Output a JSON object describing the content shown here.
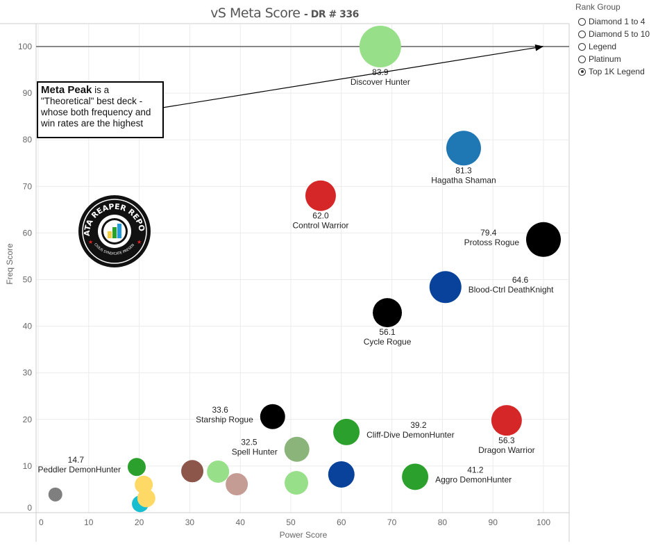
{
  "title": {
    "main": "vS Meta Score",
    "sub": "- DR # 336"
  },
  "legend": {
    "title": "Rank Group",
    "options": [
      {
        "label": "Diamond 1 to 4",
        "selected": false
      },
      {
        "label": "Diamond 5 to 10",
        "selected": false
      },
      {
        "label": "Legend",
        "selected": false
      },
      {
        "label": "Platinum",
        "selected": false
      },
      {
        "label": "Top 1K Legend",
        "selected": true
      }
    ]
  },
  "annotation": {
    "bold": "Meta Peak",
    "text": " is a \"Theoretical\" best deck - whose both frequency and win rates are the highest"
  },
  "logo": {
    "text": "DATA REAPER REPORT",
    "subtext": "VICIOUS SYNDICATE PRESENTS"
  },
  "chart_data": {
    "type": "scatter",
    "title": "vS Meta Score - DR # 336",
    "xlabel": "Power Score",
    "ylabel": "Freq Score",
    "xlim": [
      0,
      100
    ],
    "ylim": [
      0,
      100
    ],
    "xticks": [
      0,
      10,
      20,
      30,
      40,
      50,
      60,
      70,
      80,
      90,
      100
    ],
    "yticks": [
      0,
      10,
      20,
      30,
      40,
      50,
      60,
      70,
      80,
      90,
      100
    ],
    "grid": true,
    "reference_line": {
      "y": 100
    },
    "points": [
      {
        "name": "Discover Hunter",
        "score": "83.9",
        "x": 67.7,
        "y": 100,
        "size": 30,
        "color": "#98df8a",
        "label": "below"
      },
      {
        "name": "Hagatha Shaman",
        "score": "81.3",
        "x": 84.2,
        "y": 78.2,
        "size": 25,
        "color": "#1f77b4",
        "label": "below"
      },
      {
        "name": "Control Warrior",
        "score": "62.0",
        "x": 55.9,
        "y": 68.0,
        "size": 22,
        "color": "#d62728",
        "label": "below"
      },
      {
        "name": "Protoss Rogue",
        "score": "79.4",
        "x": 100,
        "y": 58.6,
        "size": 25,
        "color": "#000000",
        "label": "left"
      },
      {
        "name": "Blood-Ctrl DeathKnight",
        "score": "64.6",
        "x": 80.6,
        "y": 48.4,
        "size": 23,
        "color": "#08429a",
        "label": "right"
      },
      {
        "name": "Cycle Rogue",
        "score": "56.1",
        "x": 69.1,
        "y": 42.9,
        "size": 21,
        "color": "#000000",
        "label": "below"
      },
      {
        "name": "Starship Rogue",
        "score": "33.6",
        "x": 46.4,
        "y": 20.6,
        "size": 18,
        "color": "#000000",
        "label": "left"
      },
      {
        "name": "Cliff-Dive DemonHunter",
        "score": "39.2",
        "x": 61.0,
        "y": 17.3,
        "size": 19,
        "color": "#2ca02c",
        "label": "right"
      },
      {
        "name": "Dragon Warrior",
        "score": "56.3",
        "x": 92.7,
        "y": 19.8,
        "size": 22,
        "color": "#d62728",
        "label": "below"
      },
      {
        "name": "Spell Hunter",
        "score": "32.5",
        "x": 51.2,
        "y": 13.6,
        "size": 18,
        "color": "#8bb47a",
        "label": "left"
      },
      {
        "name": "Aggro DemonHunter",
        "score": "41.2",
        "x": 74.6,
        "y": 7.7,
        "size": 19,
        "color": "#2ca02c",
        "label": "right"
      },
      {
        "name": "Peddler DemonHunter",
        "score": "14.7",
        "x": 19.5,
        "y": 9.8,
        "size": 13,
        "color": "#2ca02c",
        "label": "left"
      },
      {
        "name": "",
        "score": "",
        "x": 60.0,
        "y": 8.2,
        "size": 19,
        "color": "#08429a",
        "label": "none"
      },
      {
        "name": "",
        "score": "",
        "x": 51.1,
        "y": 6.4,
        "size": 17,
        "color": "#98df8a",
        "label": "none"
      },
      {
        "name": "",
        "score": "",
        "x": 30.5,
        "y": 8.9,
        "size": 16,
        "color": "#8c564b",
        "label": "none"
      },
      {
        "name": "",
        "score": "",
        "x": 35.6,
        "y": 8.8,
        "size": 16,
        "color": "#98df8a",
        "label": "none"
      },
      {
        "name": "",
        "score": "",
        "x": 39.3,
        "y": 6.1,
        "size": 16,
        "color": "#c49c94",
        "label": "none"
      },
      {
        "name": "",
        "score": "",
        "x": 20.2,
        "y": 1.9,
        "size": 12,
        "color": "#17becf",
        "label": "none"
      },
      {
        "name": "",
        "score": "",
        "x": 20.9,
        "y": 6.0,
        "size": 13,
        "color": "#ffd966",
        "label": "none"
      },
      {
        "name": "",
        "score": "",
        "x": 21.4,
        "y": 3.1,
        "size": 13,
        "color": "#ffd966",
        "label": "none"
      },
      {
        "name": "",
        "score": "",
        "x": 3.4,
        "y": 3.9,
        "size": 10,
        "color": "#7f7f7f",
        "label": "none"
      }
    ]
  }
}
